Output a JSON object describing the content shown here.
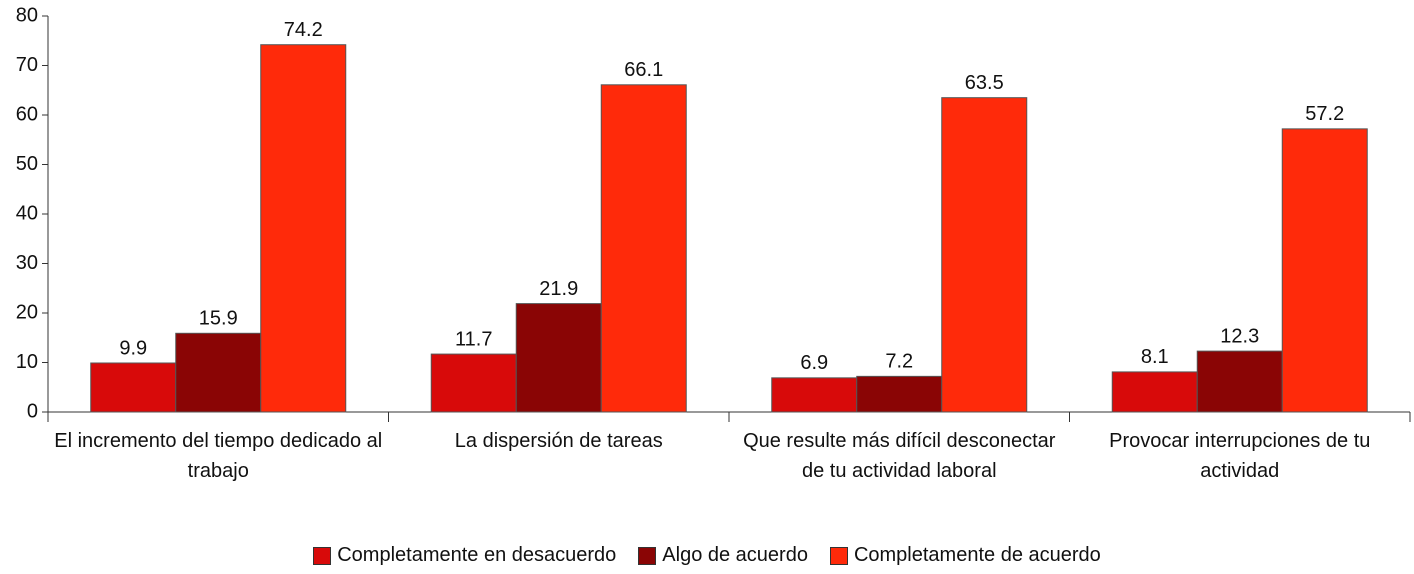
{
  "chart_data": {
    "type": "bar",
    "categories": [
      "El incremento del tiempo dedicado al trabajo",
      "La dispersión de tareas",
      "Que resulte más difícil desconectar de tu actividad laboral",
      "Provocar interrupciones de tu actividad"
    ],
    "series": [
      {
        "name": "Completamente en desacuerdo",
        "color": "#d80a0a",
        "values": [
          9.9,
          11.7,
          6.9,
          8.1
        ]
      },
      {
        "name": "Algo de acuerdo",
        "color": "#8a0505",
        "values": [
          15.9,
          21.9,
          7.2,
          12.3
        ]
      },
      {
        "name": "Completamente de acuerdo",
        "color": "#ff2a0a",
        "values": [
          74.2,
          66.1,
          63.5,
          57.2
        ]
      }
    ],
    "ylim": [
      0,
      80
    ],
    "yticks": [
      0,
      10,
      20,
      30,
      40,
      50,
      60,
      70,
      80
    ],
    "legend": "bottom"
  }
}
